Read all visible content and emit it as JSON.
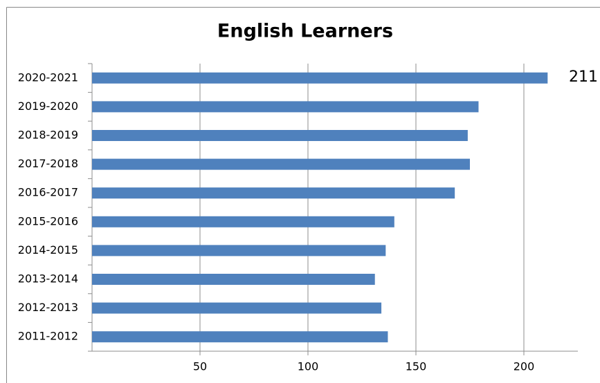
{
  "chart_data": {
    "type": "bar",
    "orientation": "horizontal",
    "title": "English Learners",
    "categories": [
      "2020-2021",
      "2019-2020",
      "2018-2019",
      "2017-2018",
      "2016-2017",
      "2015-2016",
      "2014-2015",
      "2013-2014",
      "2012-2013",
      "2011-2012"
    ],
    "values": [
      211,
      179,
      174,
      175,
      168,
      140,
      136,
      131,
      134,
      137
    ],
    "color": "#4f81bd",
    "xlim": [
      0,
      225
    ],
    "xticks": [
      50,
      100,
      150,
      200
    ],
    "grid": true
  }
}
